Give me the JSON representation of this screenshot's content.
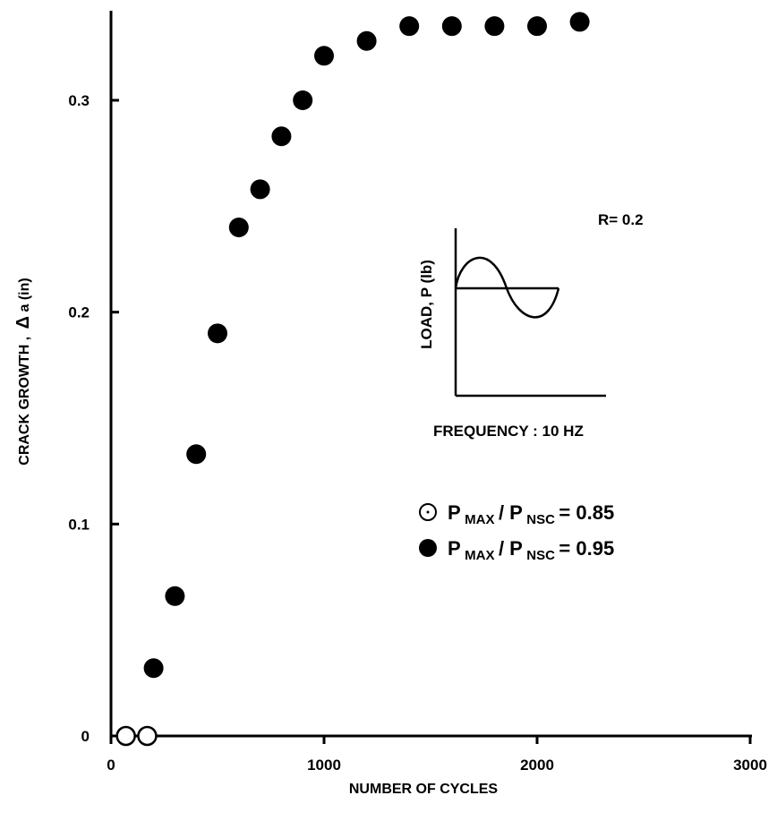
{
  "chart_data": {
    "type": "scatter",
    "xlabel": "NUMBER OF CYCLES",
    "ylabel_prefix": "CRACK GROWTH ,",
    "ylabel_delta": "Δ",
    "ylabel_suffix": "a (in)",
    "xlim": [
      0,
      3000
    ],
    "ylim": [
      0,
      0.34
    ],
    "x_ticks": [
      {
        "value": 0,
        "label": "0"
      },
      {
        "value": 1000,
        "label": "1000"
      },
      {
        "value": 2000,
        "label": "2000"
      },
      {
        "value": 3000,
        "label": "3000"
      }
    ],
    "y_ticks": [
      {
        "value": 0,
        "label": "0"
      },
      {
        "value": 0.1,
        "label": "0.1"
      },
      {
        "value": 0.2,
        "label": "0.2"
      },
      {
        "value": 0.3,
        "label": "0.3"
      }
    ],
    "grid": false,
    "legend_position": "right-middle",
    "series": [
      {
        "label_main": "P",
        "label_sub1": "MAX",
        "label_mid": "/ P",
        "label_sub2": "NSC",
        "label_value": "= 0.85",
        "marker": "open-circle",
        "points": [
          [
            70,
            0.0
          ],
          [
            170,
            0.0
          ]
        ]
      },
      {
        "label_main": "P",
        "label_sub1": "MAX",
        "label_mid": "/ P",
        "label_sub2": "NSC",
        "label_value": "= 0.95",
        "marker": "filled-circle",
        "points": [
          [
            200,
            0.032
          ],
          [
            300,
            0.066
          ],
          [
            400,
            0.133
          ],
          [
            500,
            0.19
          ],
          [
            600,
            0.24
          ],
          [
            700,
            0.258
          ],
          [
            800,
            0.283
          ],
          [
            900,
            0.3
          ],
          [
            1000,
            0.321
          ],
          [
            1200,
            0.328
          ],
          [
            1400,
            0.335
          ],
          [
            1600,
            0.335
          ],
          [
            1800,
            0.335
          ],
          [
            2000,
            0.335
          ],
          [
            2200,
            0.337
          ]
        ]
      }
    ],
    "annotations": {
      "r_ratio": "R= 0.2",
      "frequency": "FREQUENCY : 10 HZ",
      "inset_ylabel": "LOAD, P (lb)"
    }
  }
}
